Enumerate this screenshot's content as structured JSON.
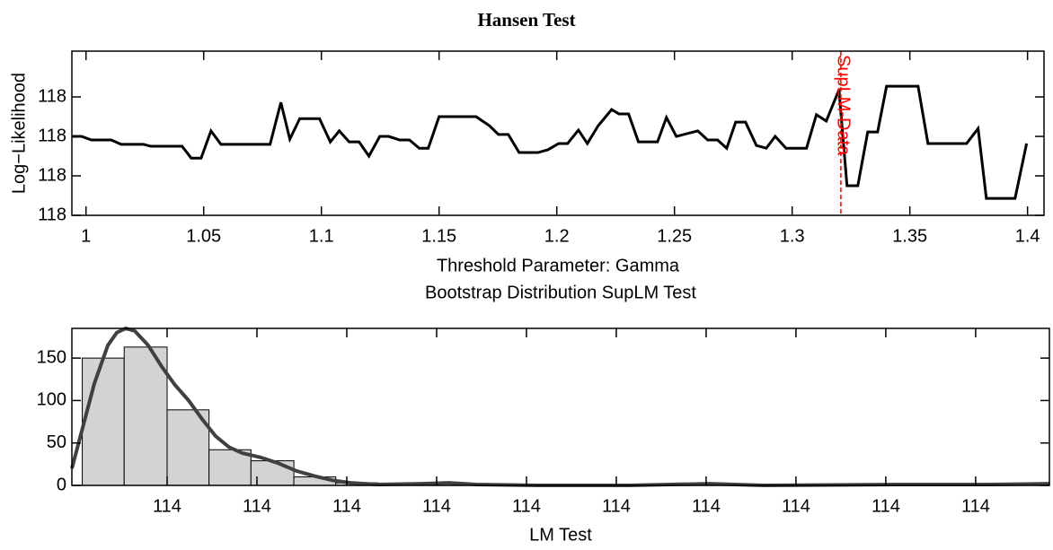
{
  "title": "Hansen Test",
  "chart_data": [
    {
      "type": "line",
      "xlabel": "Threshold Parameter: Gamma",
      "ylabel": "Log−Likelihood",
      "xlim": [
        0.994,
        1.407
      ],
      "xticks": [
        1,
        1.05,
        1.1,
        1.15,
        1.2,
        1.25,
        1.3,
        1.35,
        1.4
      ],
      "ylim": [
        118.0,
        118.416
      ],
      "yticks": [
        {
          "value": 118.0,
          "label": "118"
        },
        {
          "value": 118.1,
          "label": "118"
        },
        {
          "value": 118.2,
          "label": "118"
        },
        {
          "value": 118.3,
          "label": "118"
        }
      ],
      "series": [
        {
          "color": "#000000",
          "x": [
            0.9939,
            0.9981,
            1.0023,
            1.0107,
            1.0149,
            1.0244,
            1.0275,
            1.0408,
            1.0447,
            1.0489,
            1.0531,
            1.0573,
            1.0782,
            1.0828,
            1.0866,
            1.0908,
            1.0992,
            1.1038,
            1.1076,
            1.1118,
            1.116,
            1.1202,
            1.1248,
            1.1286,
            1.1332,
            1.1374,
            1.1416,
            1.1454,
            1.15,
            1.1657,
            1.1714,
            1.1752,
            1.1794,
            1.184,
            1.192,
            1.1962,
            1.2008,
            1.2046,
            1.2092,
            1.213,
            1.2176,
            1.2233,
            1.2264,
            1.2305,
            1.2347,
            1.2428,
            1.2466,
            1.2508,
            1.2599,
            1.2641,
            1.2683,
            1.2722,
            1.276,
            1.2802,
            1.2848,
            1.289,
            1.2928,
            1.2974,
            1.3061,
            1.3103,
            1.3145,
            1.3199,
            1.3233,
            1.3279,
            1.3321,
            1.3363,
            1.3401,
            1.3535,
            1.3577,
            1.3741,
            1.379,
            1.3825,
            1.3947,
            1.3996
          ],
          "values": [
            118.2,
            118.2,
            118.191,
            118.191,
            118.18,
            118.18,
            118.175,
            118.175,
            118.145,
            118.145,
            118.214,
            118.18,
            118.18,
            118.286,
            118.193,
            118.245,
            118.245,
            118.186,
            118.214,
            118.186,
            118.186,
            118.15,
            118.2,
            118.2,
            118.191,
            118.191,
            118.17,
            118.17,
            118.25,
            118.25,
            118.227,
            118.205,
            118.205,
            118.159,
            118.159,
            118.166,
            118.182,
            118.182,
            118.216,
            118.182,
            118.227,
            118.268,
            118.257,
            118.257,
            118.186,
            118.186,
            118.248,
            118.2,
            118.214,
            118.191,
            118.191,
            118.17,
            118.236,
            118.236,
            118.177,
            118.17,
            118.2,
            118.17,
            118.17,
            118.255,
            118.239,
            118.318,
            118.075,
            118.075,
            118.211,
            118.211,
            118.327,
            118.327,
            118.182,
            118.182,
            118.22,
            118.043,
            118.043,
            118.182
          ]
        }
      ],
      "annotation": {
        "text": "SupLM-Data",
        "x": 1.3207,
        "color": "#ff0000"
      }
    },
    {
      "type": "histogram",
      "title": "Bootstrap Distribution SupLM Test",
      "xlabel": "LM Test",
      "xlim": [
        113.5046,
        114.4839
      ],
      "xticks": [
        {
          "value": 113.6,
          "label": "114"
        },
        {
          "value": 113.69,
          "label": "114"
        },
        {
          "value": 113.78,
          "label": "114"
        },
        {
          "value": 113.87,
          "label": "114"
        },
        {
          "value": 113.96,
          "label": "114"
        },
        {
          "value": 114.05,
          "label": "114"
        },
        {
          "value": 114.14,
          "label": "114"
        },
        {
          "value": 114.23,
          "label": "114"
        },
        {
          "value": 114.32,
          "label": "114"
        },
        {
          "value": 114.41,
          "label": "114"
        }
      ],
      "ylim": [
        0,
        185
      ],
      "yticks": [
        0,
        50,
        100,
        150
      ],
      "bins": [
        113.515,
        113.557,
        113.6,
        113.642,
        113.684,
        113.727,
        113.769,
        113.811
      ],
      "counts": [
        150,
        163,
        89,
        42,
        29,
        10,
        3
      ],
      "color": "#d3d3d3",
      "density": {
        "color": "#404040",
        "x": [
          113.5046,
          113.5136,
          113.5271,
          113.5406,
          113.5496,
          113.5586,
          113.5676,
          113.5811,
          113.5946,
          113.6081,
          113.6216,
          113.6351,
          113.6486,
          113.6621,
          113.6756,
          113.6936,
          113.7116,
          113.7296,
          113.7476,
          113.7656,
          113.7836,
          113.8106,
          113.8556,
          113.8826,
          113.9096,
          113.9726,
          114.0626,
          114.1436,
          114.1976,
          114.3326,
          114.4226,
          114.4838
        ],
        "values": [
          20,
          60,
          120,
          165,
          180,
          185,
          182,
          165,
          140,
          118,
          100,
          78,
          58,
          45,
          38,
          33,
          26,
          17,
          11,
          6,
          3,
          1,
          2,
          3,
          1,
          0,
          0,
          2,
          0,
          1,
          1,
          2
        ]
      }
    }
  ]
}
